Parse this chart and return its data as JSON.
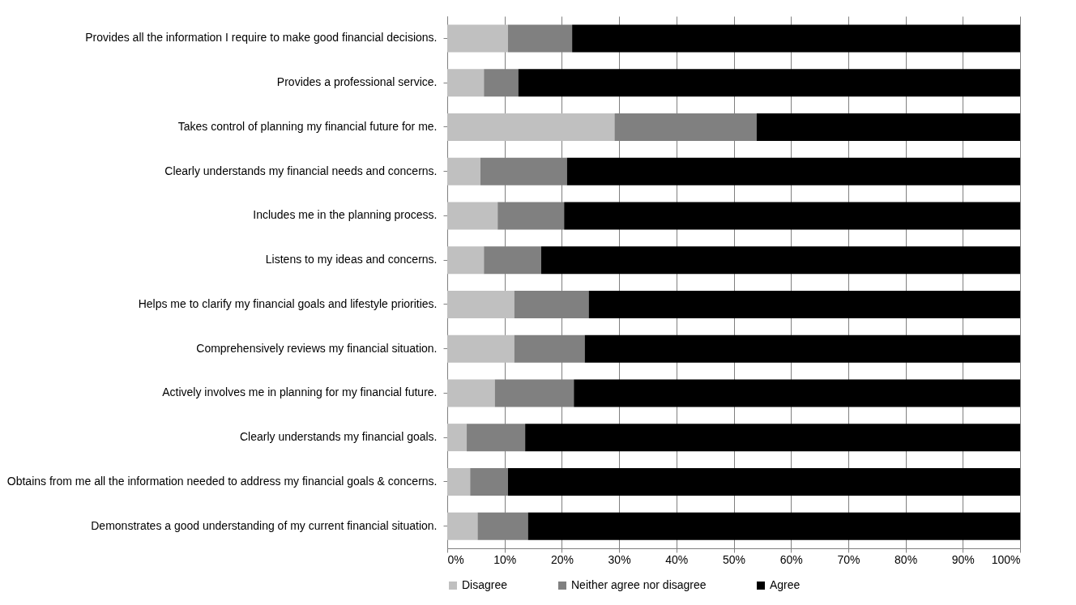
{
  "chart_data": {
    "type": "bar",
    "orientation": "horizontal",
    "stacked": true,
    "categories": [
      "Provides all the information I require to make good financial decisions.",
      "Provides a professional service.",
      "Takes control of planning my financial future for me.",
      "Clearly understands my financial needs and concerns.",
      "Includes me in the planning process.",
      "Listens to my ideas and concerns.",
      "Helps me to clarify my financial goals and lifestyle priorities.",
      "Comprehensively reviews my financial situation.",
      "Actively involves me in planning for my financial future.",
      "Clearly understands my financial goals.",
      "Obtains from me all the information needed to address my financial goals & concerns.",
      "Demonstrates a good understanding of my current financial situation."
    ],
    "series": [
      {
        "name": "Disagree",
        "color": "#c0c0c0",
        "values": [
          10.6,
          6.4,
          29.2,
          5.8,
          8.8,
          6.4,
          11.7,
          11.7,
          8.3,
          3.4,
          4.0,
          5.3
        ]
      },
      {
        "name": "Neither agree nor disagree",
        "color": "#808080",
        "values": [
          11.2,
          6.0,
          24.8,
          15.1,
          11.6,
          10.0,
          13.0,
          12.3,
          13.8,
          10.2,
          6.6,
          8.8
        ]
      },
      {
        "name": "Agree",
        "color": "#000000",
        "values": [
          78.2,
          87.6,
          46.0,
          79.1,
          79.6,
          83.6,
          75.3,
          76.0,
          77.9,
          86.4,
          89.4,
          85.9
        ]
      }
    ],
    "xlim": [
      0,
      100
    ],
    "xticks": [
      {
        "value": 0,
        "label": "0%"
      },
      {
        "value": 10,
        "label": "10%"
      },
      {
        "value": 20,
        "label": "20%"
      },
      {
        "value": 30,
        "label": "30%"
      },
      {
        "value": 40,
        "label": "40%"
      },
      {
        "value": 50,
        "label": "50%"
      },
      {
        "value": 60,
        "label": "60%"
      },
      {
        "value": 70,
        "label": "70%"
      },
      {
        "value": 80,
        "label": "80%"
      },
      {
        "value": 90,
        "label": "90%"
      },
      {
        "value": 100,
        "label": "100%"
      }
    ],
    "grid": "x",
    "legend": "bottom"
  }
}
